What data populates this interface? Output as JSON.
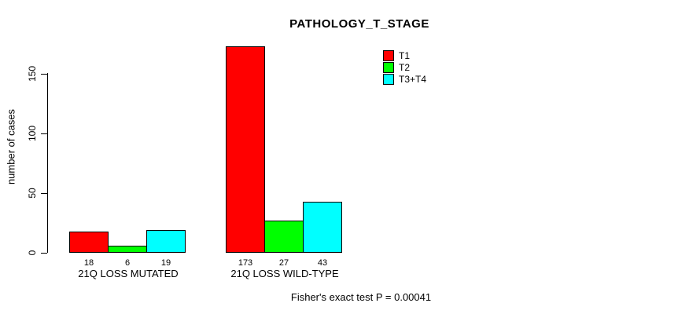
{
  "chart_data": {
    "type": "bar",
    "title": "PATHOLOGY_T_STAGE",
    "xlabel": "",
    "ylabel": "number of cases",
    "categories": [
      "21Q LOSS MUTATED",
      "21Q LOSS WILD-TYPE"
    ],
    "series": [
      {
        "name": "T1",
        "color": "#ff0000",
        "values": [
          18,
          173
        ]
      },
      {
        "name": "T2",
        "color": "#00ff00",
        "values": [
          6,
          27
        ]
      },
      {
        "name": "T3+T4",
        "color": "#00ffff",
        "values": [
          19,
          43
        ]
      }
    ],
    "value_labels": [
      [
        "18",
        "6",
        "19"
      ],
      [
        "173",
        "27",
        "43"
      ]
    ],
    "yticks": [
      0,
      50,
      100,
      150
    ],
    "ylim": [
      0,
      173
    ],
    "grid": false,
    "legend_position": "top-right",
    "bar_border_color": "#000000",
    "annotation": "Fisher's exact test P = 0.00041"
  }
}
